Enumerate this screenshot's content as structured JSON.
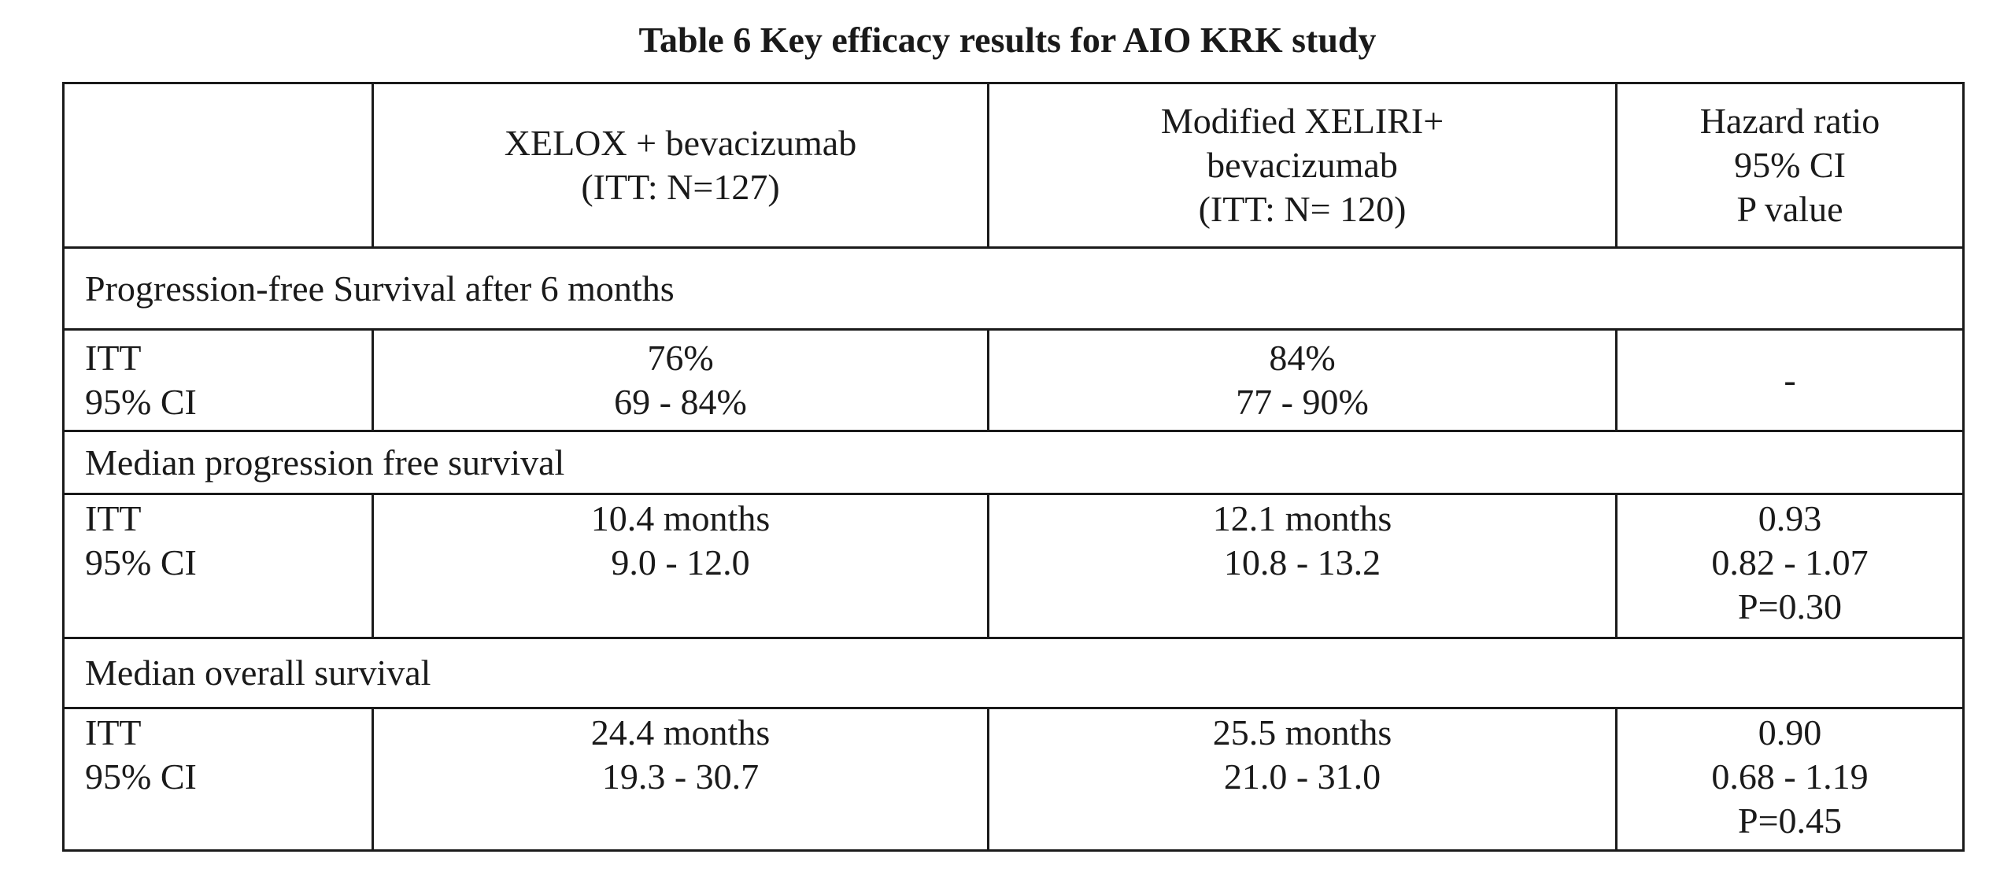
{
  "title": "Table 6 Key efficacy results for AIO KRK study",
  "header": {
    "col1": "",
    "col2": [
      "XELOX + bevacizumab",
      "(ITT: N=127)"
    ],
    "col3": [
      "Modified XELIRI+",
      "bevacizumab",
      "(ITT: N= 120)"
    ],
    "col4": [
      "Hazard ratio",
      "95% CI",
      "P value"
    ]
  },
  "sections": [
    {
      "title": "Progression-free Survival after 6 months",
      "row": {
        "label": [
          "ITT",
          "95% CI"
        ],
        "xelox": [
          "76%",
          "69 - 84%"
        ],
        "xeliri": [
          "84%",
          "77 - 90%"
        ],
        "hazard": [
          "-"
        ]
      }
    },
    {
      "title": "Median progression free survival",
      "row": {
        "label": [
          "ITT",
          "95% CI"
        ],
        "xelox": [
          "10.4 months",
          "9.0 - 12.0"
        ],
        "xeliri": [
          "12.1 months",
          "10.8 - 13.2"
        ],
        "hazard": [
          "0.93",
          "0.82 - 1.07",
          "P=0.30"
        ]
      }
    },
    {
      "title": "Median overall survival",
      "row": {
        "label": [
          "ITT",
          "95% CI"
        ],
        "xelox": [
          "24.4 months",
          "19.3 - 30.7"
        ],
        "xeliri": [
          "25.5 months",
          "21.0 - 31.0"
        ],
        "hazard": [
          "0.90",
          "0.68 - 1.19",
          "P=0.45"
        ]
      }
    }
  ]
}
